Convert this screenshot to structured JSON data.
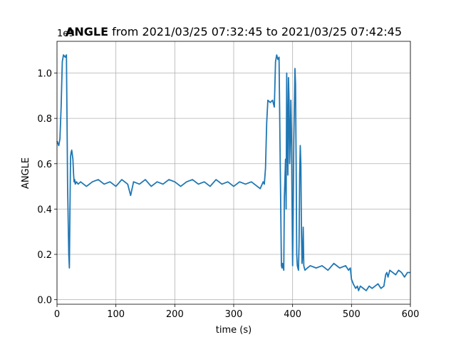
{
  "chart_data": {
    "type": "line",
    "title_bold": "ANGLE",
    "title_rest": " from 2021/03/25 07:32:45 to 2021/03/25 07:42:45",
    "xlabel": "time (s)",
    "ylabel": "ANGLE",
    "y_offset_text": "1e9",
    "xlim": [
      0,
      600
    ],
    "ylim": [
      -0.02,
      1.14
    ],
    "x_ticks": [
      0,
      100,
      200,
      300,
      400,
      500,
      600
    ],
    "y_ticks": [
      0.0,
      0.2,
      0.4,
      0.6,
      0.8,
      1.0
    ],
    "grid": true,
    "line_color": "#1f77b4",
    "series": [
      {
        "x": [
          0,
          3,
          5,
          7,
          9,
          11,
          14,
          16,
          17,
          18,
          20,
          21,
          22,
          23,
          24,
          25,
          27,
          28,
          29,
          30,
          31,
          33,
          36,
          40,
          50,
          60,
          70,
          80,
          90,
          100,
          110,
          120,
          125,
          130,
          140,
          150,
          160,
          170,
          180,
          190,
          200,
          210,
          220,
          230,
          240,
          250,
          260,
          270,
          280,
          290,
          300,
          310,
          320,
          330,
          340,
          345,
          350,
          352,
          354,
          356,
          358,
          362,
          366,
          369,
          371,
          373,
          375,
          377,
          379,
          381,
          382,
          383,
          385,
          386,
          388,
          389,
          390,
          391,
          392,
          393,
          394,
          395,
          396,
          397,
          398,
          399,
          400,
          401,
          402,
          403,
          404,
          405,
          406,
          407,
          408,
          409,
          410,
          411,
          412,
          413,
          414,
          415,
          416,
          417,
          418,
          419,
          420,
          421,
          425,
          430,
          440,
          450,
          460,
          470,
          480,
          490,
          495,
          498,
          500,
          503,
          507,
          510,
          512,
          515,
          520,
          525,
          530,
          535,
          540,
          545,
          550,
          555,
          558,
          560,
          562,
          565,
          570,
          575,
          580,
          585,
          590,
          595,
          600
        ],
        "y": [
          0.7,
          0.68,
          0.71,
          0.85,
          1.05,
          1.08,
          1.07,
          1.08,
          0.8,
          0.5,
          0.2,
          0.14,
          0.4,
          0.63,
          0.65,
          0.66,
          0.62,
          0.56,
          0.52,
          0.53,
          0.51,
          0.52,
          0.51,
          0.52,
          0.5,
          0.52,
          0.53,
          0.51,
          0.52,
          0.5,
          0.53,
          0.51,
          0.46,
          0.52,
          0.51,
          0.53,
          0.5,
          0.52,
          0.51,
          0.53,
          0.52,
          0.5,
          0.52,
          0.53,
          0.51,
          0.52,
          0.5,
          0.53,
          0.51,
          0.52,
          0.5,
          0.52,
          0.51,
          0.52,
          0.5,
          0.49,
          0.52,
          0.51,
          0.58,
          0.78,
          0.88,
          0.87,
          0.88,
          0.85,
          1.05,
          1.08,
          1.06,
          1.07,
          0.6,
          0.15,
          0.14,
          0.16,
          0.13,
          0.45,
          0.62,
          0.4,
          1.0,
          0.7,
          0.55,
          0.98,
          0.88,
          0.6,
          0.7,
          0.88,
          0.75,
          0.45,
          0.15,
          0.38,
          0.7,
          0.85,
          1.02,
          0.95,
          0.6,
          0.2,
          0.15,
          0.14,
          0.13,
          0.25,
          0.55,
          0.68,
          0.6,
          0.3,
          0.16,
          0.2,
          0.32,
          0.15,
          0.14,
          0.13,
          0.14,
          0.15,
          0.14,
          0.15,
          0.13,
          0.16,
          0.14,
          0.15,
          0.13,
          0.14,
          0.09,
          0.07,
          0.05,
          0.06,
          0.04,
          0.06,
          0.05,
          0.04,
          0.06,
          0.05,
          0.06,
          0.07,
          0.05,
          0.06,
          0.11,
          0.12,
          0.1,
          0.13,
          0.12,
          0.11,
          0.13,
          0.12,
          0.1,
          0.12,
          0.12
        ]
      }
    ]
  }
}
